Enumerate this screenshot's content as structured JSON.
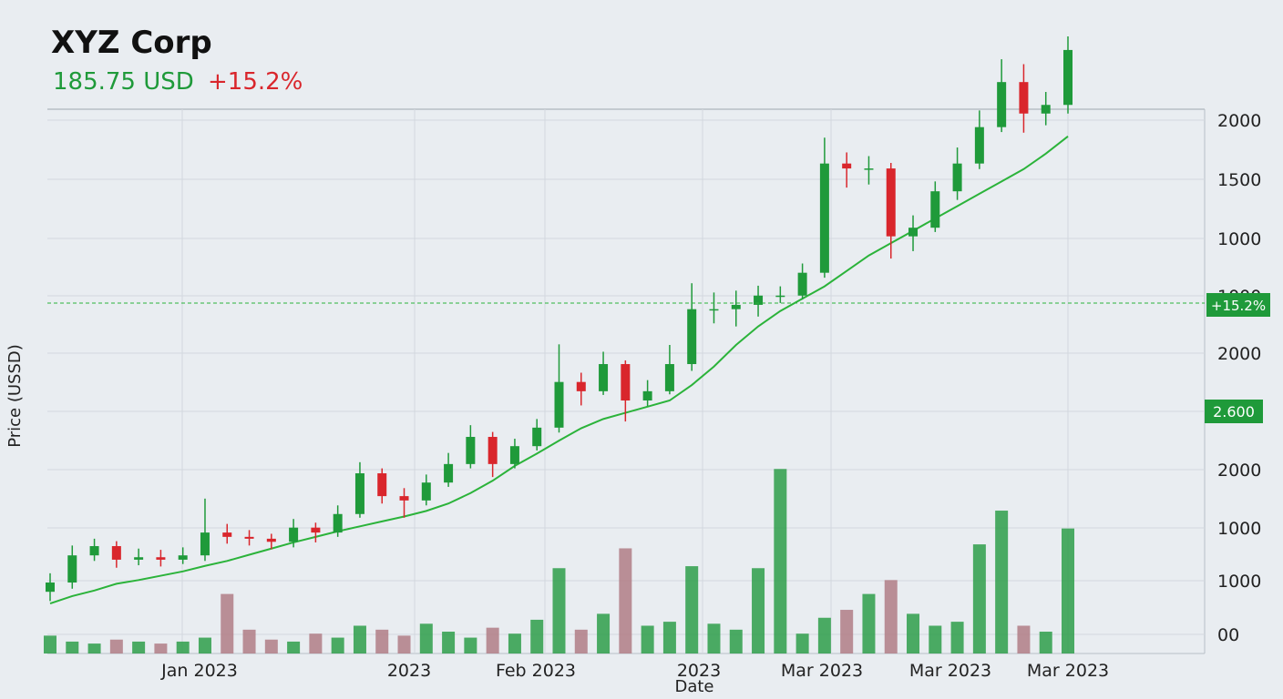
{
  "chart_data": {
    "type": "candlestick",
    "title": "XYZ Corp",
    "price_text": "185.75 USD",
    "change_text": "+15.2%",
    "y_axis_label": "Price  (USSD)",
    "x_axis_label": "Date",
    "x_labels": [
      "Jan 2023",
      "2023",
      "Feb 2023",
      "2023",
      "Mar 2023",
      "Mar 2023",
      "Mar 2023"
    ],
    "right_labels": [
      "2000",
      "1500",
      "1000",
      "1000",
      "2000",
      "2000",
      "1000",
      "1000",
      "00"
    ],
    "price_badge": "+15.2%",
    "level_badge": "2.600",
    "ylim": [
      0,
      100
    ],
    "up_color": "#1f9a3a",
    "down_color": "#d9262c",
    "open": [
      10.0,
      11.5,
      15.9,
      17.4,
      15.2,
      15.6,
      15.2,
      15.9,
      19.6,
      18.9,
      18.6,
      18.1,
      20.4,
      19.6,
      22.6,
      29.2,
      25.5,
      24.8,
      27.7,
      30.7,
      35.1,
      30.7,
      33.6,
      36.6,
      44.0,
      42.5,
      46.9,
      41.0,
      42.5,
      46.9,
      55.8,
      55.8,
      56.5,
      58.0,
      58.0,
      61.7,
      79.4,
      78.6,
      78.6,
      67.6,
      69.0,
      74.9,
      79.4,
      85.3,
      92.6,
      87.5,
      88.9
    ],
    "high": [
      13.0,
      17.5,
      18.6,
      18.2,
      17.0,
      16.8,
      17.2,
      25.1,
      21.0,
      20.0,
      19.4,
      21.8,
      21.2,
      24.0,
      31.0,
      30.0,
      26.8,
      29.0,
      32.5,
      37.0,
      35.9,
      34.8,
      38.0,
      50.1,
      45.5,
      48.9,
      47.5,
      44.3,
      50.0,
      60.0,
      58.5,
      58.8,
      59.6,
      59.5,
      63.2,
      83.6,
      81.2,
      80.6,
      79.5,
      71.0,
      76.5,
      82.0,
      88.0,
      96.3,
      95.5,
      91.0,
      100.0
    ],
    "low": [
      8.5,
      10.5,
      15.0,
      13.9,
      14.3,
      14.1,
      14.5,
      15.0,
      17.8,
      17.5,
      16.9,
      17.2,
      18.0,
      18.9,
      22.0,
      24.3,
      22.0,
      24.0,
      27.0,
      30.0,
      28.6,
      30.0,
      32.9,
      35.8,
      40.2,
      41.9,
      37.6,
      40.1,
      42.0,
      45.8,
      53.5,
      53.0,
      54.6,
      56.8,
      57.4,
      60.9,
      75.5,
      76.0,
      64.0,
      65.2,
      68.3,
      73.5,
      78.5,
      84.5,
      84.4,
      85.6,
      87.5
    ],
    "close": [
      11.5,
      15.9,
      17.4,
      15.2,
      15.6,
      15.2,
      15.9,
      19.6,
      18.9,
      18.6,
      18.1,
      20.4,
      19.6,
      22.6,
      29.2,
      25.5,
      24.8,
      27.7,
      30.7,
      35.1,
      30.7,
      33.6,
      36.6,
      44.0,
      42.5,
      46.9,
      41.0,
      42.5,
      46.9,
      55.8,
      55.8,
      56.5,
      58.0,
      58.0,
      61.7,
      79.4,
      78.6,
      78.6,
      67.6,
      69.0,
      74.9,
      79.4,
      85.3,
      92.6,
      87.5,
      88.9,
      97.8
    ],
    "moving_average": {
      "color": "#2bb33a",
      "values": [
        8.1,
        9.3,
        10.2,
        11.3,
        11.9,
        12.6,
        13.3,
        14.2,
        15.0,
        16.0,
        17.0,
        18.0,
        18.9,
        19.8,
        20.6,
        21.4,
        22.2,
        23.1,
        24.3,
        26.0,
        28.0,
        30.4,
        32.4,
        34.5,
        36.5,
        38.0,
        39.0,
        40.0,
        41.0,
        43.5,
        46.5,
        50.0,
        53.0,
        55.5,
        57.5,
        59.5,
        62.0,
        64.5,
        66.5,
        68.5,
        70.5,
        72.5,
        74.5,
        76.5,
        78.5,
        81.0,
        83.8
      ]
    },
    "volume": {
      "ylim": [
        0,
        100
      ],
      "values": [
        9,
        6,
        5,
        7,
        6,
        5,
        6,
        8,
        30,
        12,
        7,
        6,
        10,
        8,
        14,
        12,
        9,
        15,
        11,
        8,
        13,
        10,
        17,
        43,
        12,
        20,
        53,
        14,
        16,
        44,
        15,
        12,
        43,
        93,
        10,
        18,
        22,
        30,
        37,
        20,
        14,
        16,
        55,
        72,
        14,
        11,
        63
      ]
    }
  }
}
